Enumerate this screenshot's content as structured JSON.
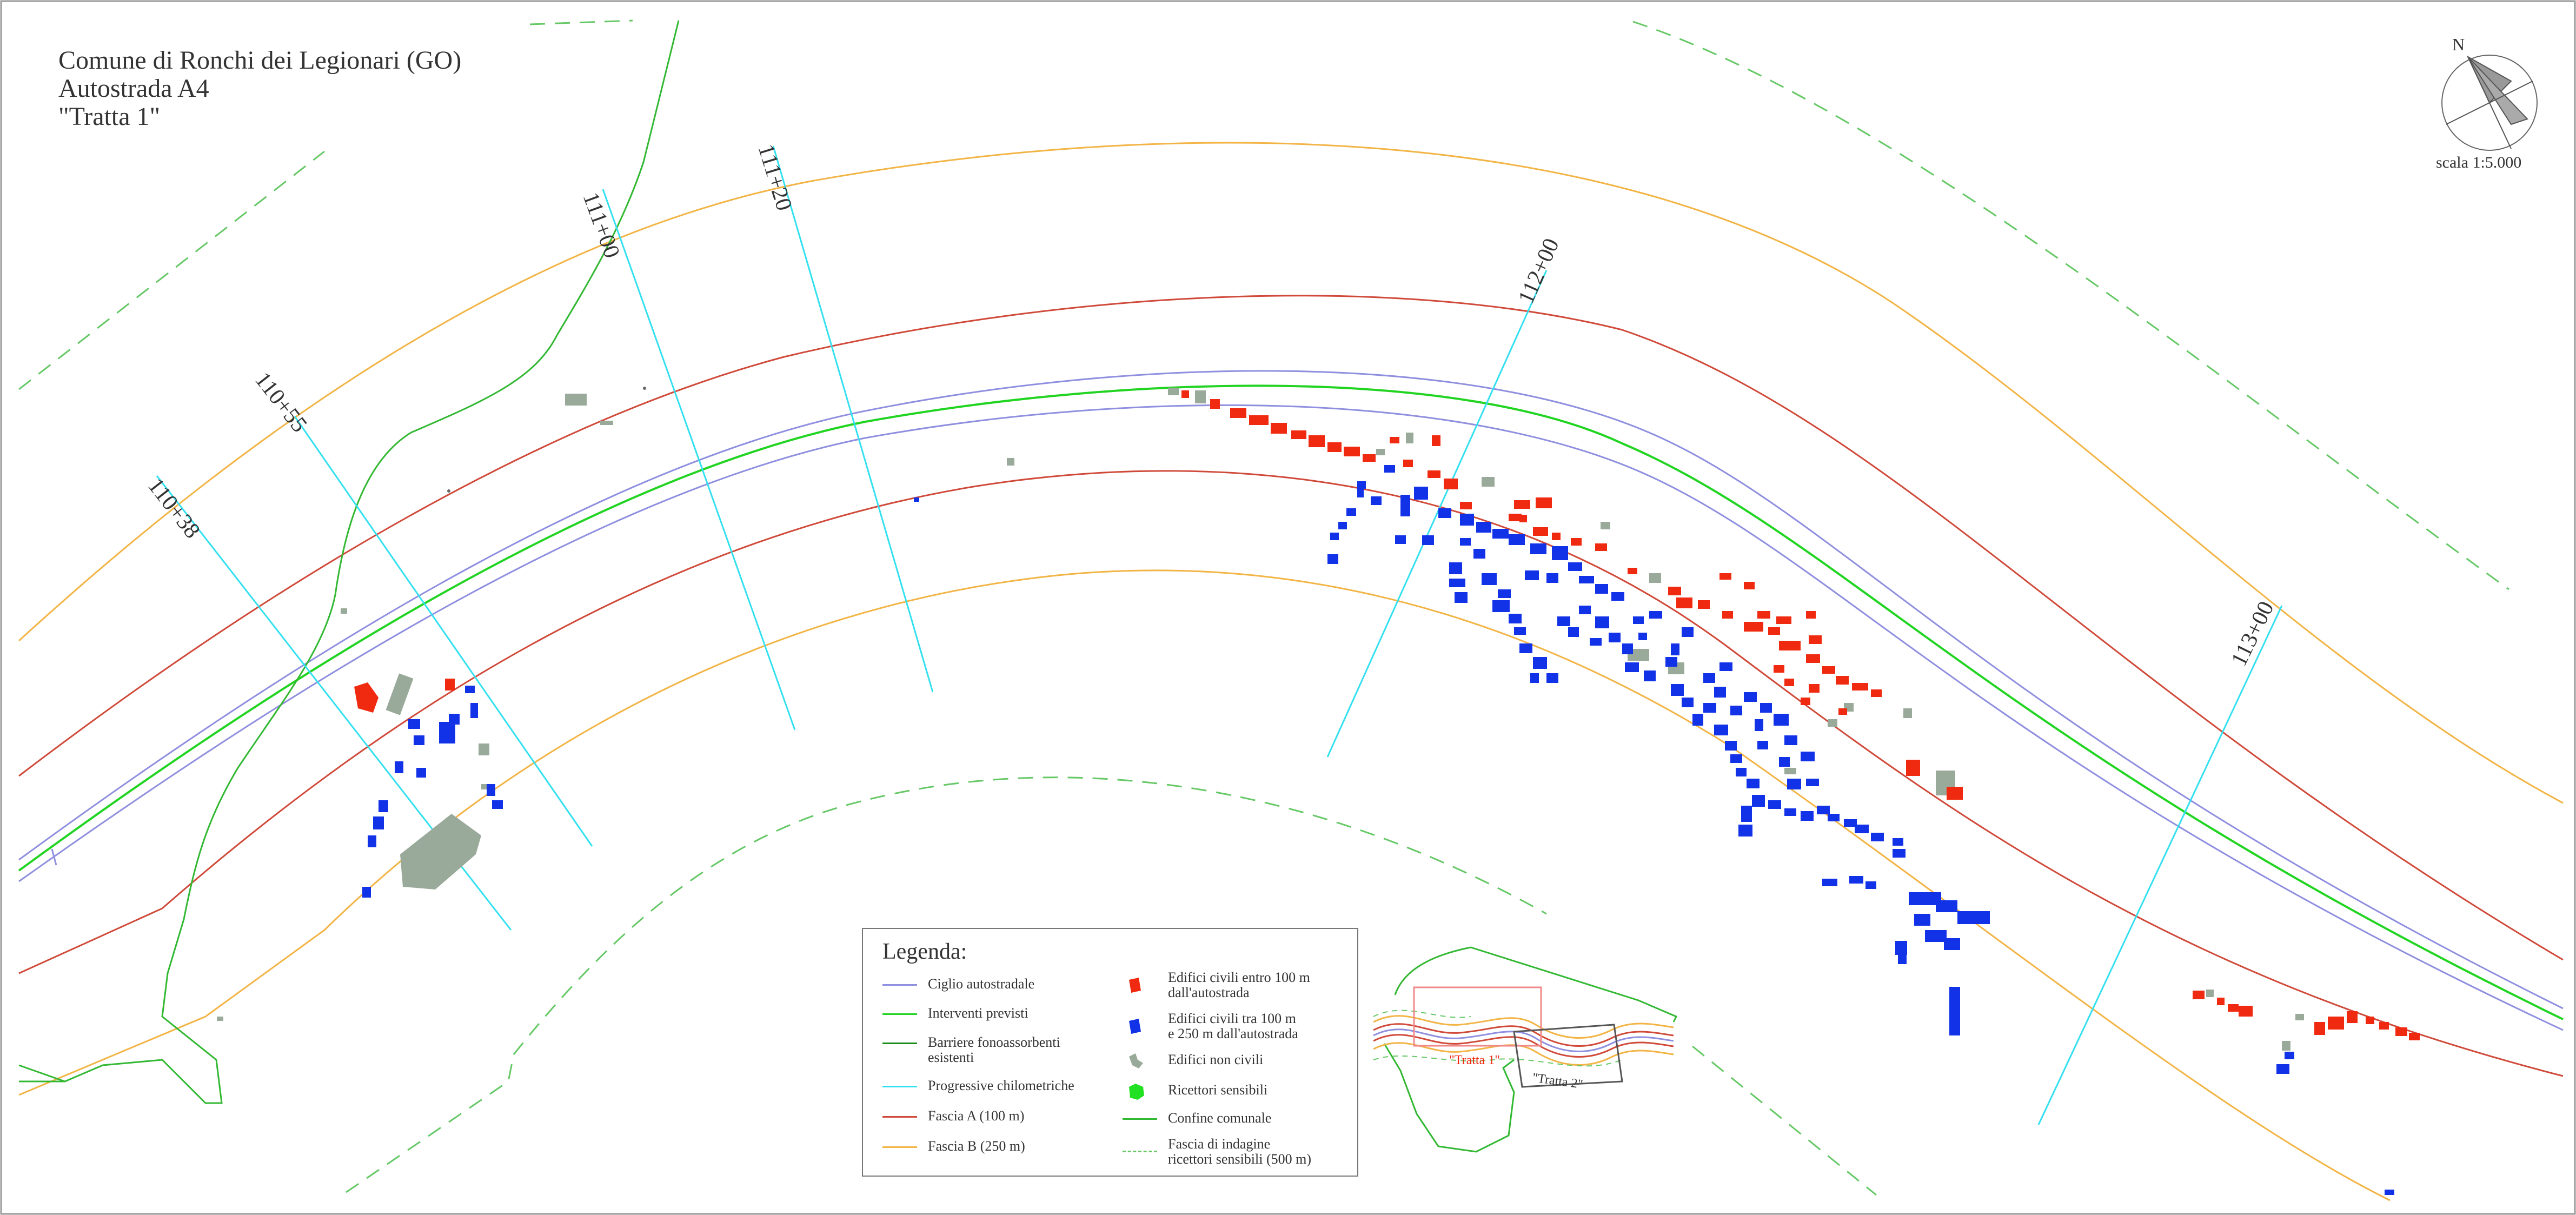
{
  "title": {
    "line1": "Comune di Ronchi dei Legionari (GO)",
    "line2": "Autostrada A4",
    "line3": "\"Tratta 1\""
  },
  "north_arrow": {
    "label": "N",
    "icon": "north-arrow-icon"
  },
  "scale": {
    "label": "scala 1:5.000"
  },
  "progressives": [
    {
      "label": "110+38"
    },
    {
      "label": "110+55"
    },
    {
      "label": "111+00"
    },
    {
      "label": "111+20"
    },
    {
      "label": "112+00"
    },
    {
      "label": "113+00"
    }
  ],
  "colors": {
    "carriageway": "#8f8fe0",
    "planned": "#22d422",
    "barriers": "#1a8c1a",
    "progressive": "#33e0f0",
    "band_a": "#d04a3a",
    "band_b": "#f2b445",
    "boundary": "#33b833",
    "survey_band": "#66c866",
    "civil_within_100": "#f02a10",
    "civil_100_250": "#1232e8",
    "non_civil": "#9aaa9a",
    "sensitive": "#22e022"
  },
  "legend": {
    "title": "Legenda:",
    "items_left": [
      {
        "label": "Ciglio autostradale",
        "symbol": "line",
        "color_key": "carriageway"
      },
      {
        "label": "Interventi previsti",
        "symbol": "line",
        "color_key": "planned"
      },
      {
        "label": "Barriere fonoassorbenti\nesistenti",
        "symbol": "line",
        "color_key": "barriers"
      },
      {
        "label": "Progressive chilometriche",
        "symbol": "line",
        "color_key": "progressive"
      },
      {
        "label": "Fascia A (100 m)",
        "symbol": "line",
        "color_key": "band_a"
      },
      {
        "label": "Fascia B (250 m)",
        "symbol": "line",
        "color_key": "band_b"
      }
    ],
    "items_right": [
      {
        "label": "Edifici civili entro 100 m\ndall'autostrada",
        "symbol": "red-building-icon",
        "color_key": "civil_within_100"
      },
      {
        "label": "Edifici civili tra 100 m\ne 250 m dall'autostrada",
        "symbol": "blue-building-icon",
        "color_key": "civil_100_250"
      },
      {
        "label": "Edifici non civili",
        "symbol": "grey-building-icon",
        "color_key": "non_civil"
      },
      {
        "label": "Ricettori sensibili",
        "symbol": "green-building-icon",
        "color_key": "sensitive"
      },
      {
        "label": "Confine comunale",
        "symbol": "line",
        "color_key": "boundary"
      },
      {
        "label": "Fascia di indagine\nricettori sensibili (500 m)",
        "symbol": "dash",
        "color_key": "survey_band"
      }
    ]
  },
  "inset": {
    "tratta1": "\"Tratta 1\"",
    "tratta2": "\"Tratta 2\""
  }
}
